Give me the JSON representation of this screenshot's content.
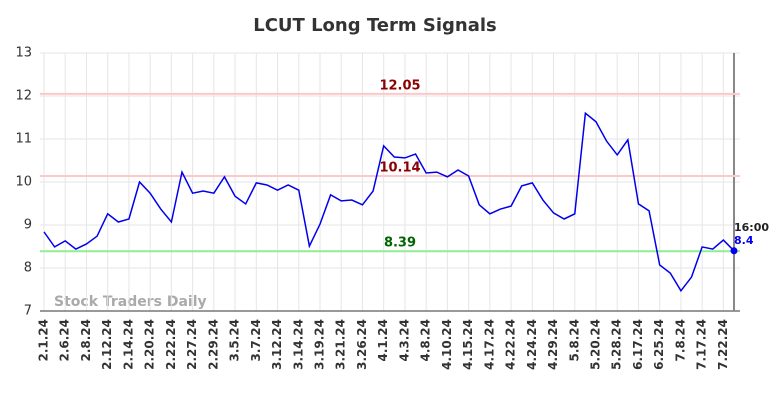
{
  "chart_data": {
    "type": "line",
    "title": "LCUT Long Term Signals",
    "watermark": "Stock Traders Daily",
    "categories": [
      "2.1.24",
      null,
      "2.6.24",
      null,
      "2.8.24",
      null,
      "2.12.24",
      null,
      "2.14.24",
      null,
      "2.20.24",
      null,
      "2.22.24",
      null,
      "2.27.24",
      null,
      "2.29.24",
      null,
      "3.5.24",
      null,
      "3.7.24",
      null,
      "3.12.24",
      null,
      "3.14.24",
      null,
      "3.19.24",
      null,
      "3.21.24",
      null,
      "3.26.24",
      null,
      "4.1.24",
      null,
      "4.3.24",
      null,
      "4.8.24",
      null,
      "4.10.24",
      null,
      "4.15.24",
      null,
      "4.17.24",
      null,
      "4.22.24",
      null,
      "4.24.24",
      null,
      "4.29.24",
      null,
      "5.8.24",
      null,
      "5.20.24",
      null,
      "5.28.24",
      null,
      "6.17.24",
      null,
      "6.25.24",
      null,
      "7.8.24",
      null,
      "7.17.24",
      null,
      "7.22.24",
      null
    ],
    "values": [
      8.84,
      8.49,
      8.63,
      8.44,
      8.56,
      8.74,
      9.26,
      9.07,
      9.14,
      10.0,
      9.74,
      9.37,
      9.07,
      10.23,
      9.74,
      9.79,
      9.74,
      10.12,
      9.67,
      9.49,
      9.98,
      9.93,
      9.81,
      9.93,
      9.81,
      8.51,
      9.02,
      9.7,
      9.56,
      9.58,
      9.47,
      9.79,
      10.84,
      10.58,
      10.56,
      10.65,
      10.21,
      10.23,
      10.12,
      10.28,
      10.14,
      9.47,
      9.26,
      9.37,
      9.44,
      9.91,
      9.98,
      9.58,
      9.28,
      9.14,
      9.26,
      11.6,
      11.4,
      10.95,
      10.63,
      10.98,
      9.49,
      9.33,
      8.07,
      7.88,
      7.47,
      7.79,
      8.49,
      8.44,
      8.65,
      8.4
    ],
    "color": "#0000ee",
    "levels": [
      {
        "value": 12.05,
        "color": "#ffc8c8",
        "label_color": "#8b0000"
      },
      {
        "value": 10.14,
        "color": "#ffc8c8",
        "label_color": "#8b0000"
      },
      {
        "value": 8.39,
        "color": "#90ee90",
        "label_color": "#006400"
      }
    ],
    "end_annotation": {
      "time": "16:00",
      "label": "8.4"
    },
    "ylim": [
      7,
      13
    ],
    "yticks": [
      7,
      8,
      9,
      10,
      11,
      12,
      13
    ],
    "grid": true
  }
}
